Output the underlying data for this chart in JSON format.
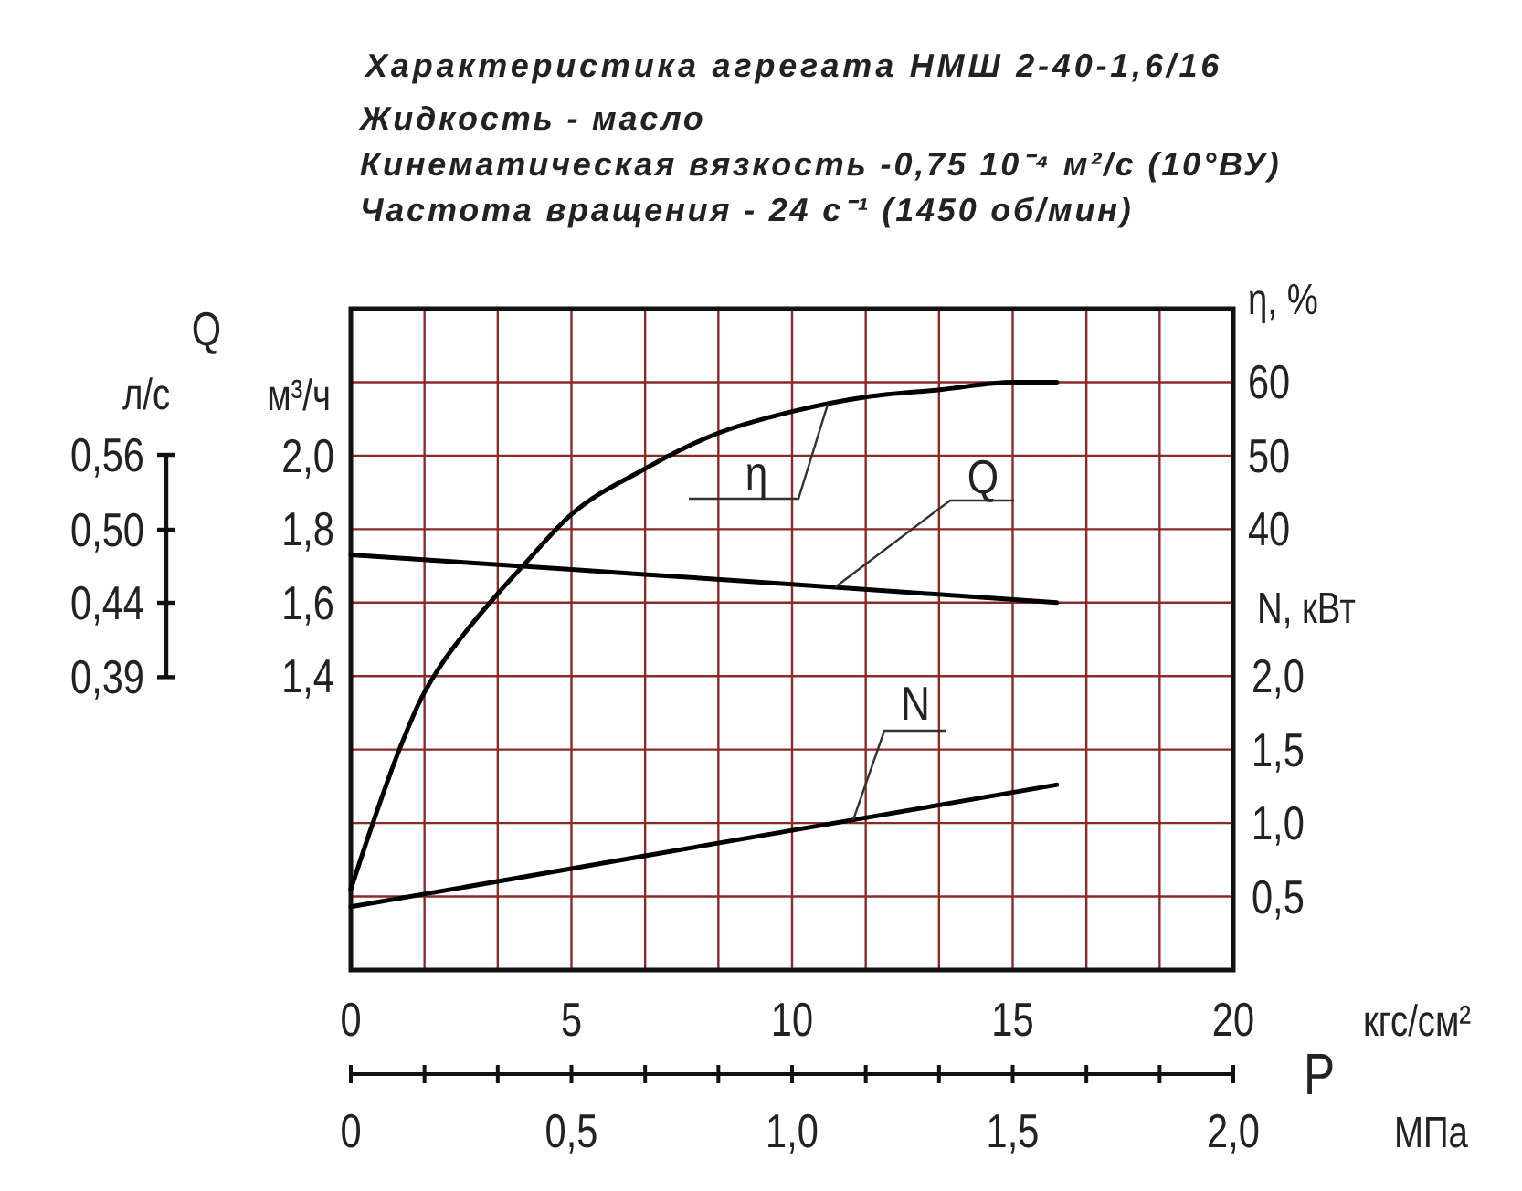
{
  "chart_data": {
    "type": "line",
    "title": "Характеристика агрегата НМШ 2-40-1,6/16",
    "subtitle": "Жидкость - масло\nКинематическая вязкость -0,75 10⁻⁴ м²/с (10°ВУ)\nЧастота вращения - 24 с⁻¹ (1450 об/мин)",
    "xlabel": "кгс/см²",
    "x2label": "МПа",
    "ylabel": "м³/ч",
    "y2label": "η, %",
    "y3label": "N, кВт",
    "annotations": [
      "Q",
      "P",
      "л/с",
      "0,56",
      "0,50",
      "0,44",
      "0,39"
    ],
    "xlim": [
      0,
      20
    ],
    "xticks": [
      0,
      {
        "value": 1.67,
        "label": null
      },
      {
        "value": 3.33,
        "label": null
      },
      5,
      {
        "value": 6.67,
        "label": null
      },
      {
        "value": 8.33,
        "label": null
      },
      10,
      {
        "value": 11.67,
        "label": null
      },
      {
        "value": 13.33,
        "label": null
      },
      15,
      {
        "value": 16.67,
        "label": null
      },
      {
        "value": 18.33,
        "label": null
      },
      20
    ],
    "x2lim": [
      0,
      2.0
    ],
    "x2ticks": [
      0,
      {
        "value": 0.167,
        "label": null
      },
      {
        "value": 0.333,
        "label": null
      },
      {
        "value": 0.5,
        "label": "0,5"
      },
      {
        "value": 0.667,
        "label": null
      },
      {
        "value": 0.833,
        "label": null
      },
      {
        "value": 1.0,
        "label": "1,0"
      },
      {
        "value": 1.167,
        "label": null
      },
      {
        "value": 1.333,
        "label": null
      },
      {
        "value": 1.5,
        "label": "1,5"
      },
      {
        "value": 1.667,
        "label": null
      },
      {
        "value": 1.833,
        "label": null
      },
      {
        "value": 2.0,
        "label": "2,0"
      }
    ],
    "ylim": [
      0.6,
      2.4
    ],
    "yticks": [
      {
        "value": 0.8,
        "label": null
      },
      {
        "value": 1.0,
        "label": null
      },
      {
        "value": 1.2,
        "label": null
      },
      {
        "value": 1.4,
        "label": "1,4"
      },
      {
        "value": 1.6,
        "label": "1,6"
      },
      {
        "value": 1.8,
        "label": "1,8"
      },
      {
        "value": 2.0,
        "label": "2,0"
      },
      {
        "value": 2.2,
        "label": null
      }
    ],
    "y2lim": [
      -20,
      70
    ],
    "y2ticks": [
      40,
      50,
      60
    ],
    "y3lim": [
      0,
      4.5
    ],
    "y3ticks": [
      {
        "value": 0.5,
        "label": "0,5"
      },
      {
        "value": 1.0,
        "label": "1,0"
      },
      {
        "value": 1.5,
        "label": "1,5"
      },
      {
        "value": 2.0,
        "label": "2,0"
      }
    ],
    "grid": true,
    "series": [
      {
        "name": "η",
        "color": "#000000",
        "axis": "y2",
        "x": [
          0,
          0.5,
          1.1,
          1.6,
          2.1,
          2.6,
          3.3,
          3.9,
          5,
          6.6,
          8.3,
          10,
          11.7,
          13.4,
          15,
          16
        ],
        "values": [
          -9,
          0,
          10,
          17,
          22,
          26,
          31,
          35,
          42,
          48,
          53,
          56,
          58,
          59,
          60,
          60
        ]
      },
      {
        "name": "Q",
        "color": "#000000",
        "x": [
          0,
          5,
          10,
          16
        ],
        "values": [
          1.73,
          1.69,
          1.65,
          1.6
        ]
      },
      {
        "name": "N",
        "color": "#000000",
        "axis": "y3",
        "x": [
          0,
          5,
          10,
          16
        ],
        "values": [
          0.43,
          0.69,
          0.95,
          1.26
        ]
      }
    ]
  }
}
